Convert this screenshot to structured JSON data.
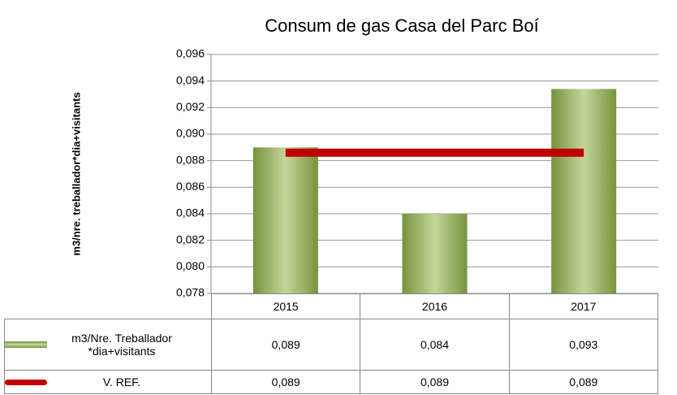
{
  "chart_data": {
    "type": "bar",
    "title": "Consum de gas Casa del Parc  Boí",
    "y_label": "m3/nre. treballador*dia+visitants",
    "categories": [
      "2015",
      "2016",
      "2017"
    ],
    "series": [
      {
        "name": "m3/Nre. Treballador *dia+visitants",
        "type": "bar",
        "color": "#77933c",
        "values": [
          0.089,
          0.084,
          0.0934
        ],
        "value_labels": [
          "0,089",
          "0,084",
          "0,093"
        ]
      },
      {
        "name": "V. REF.",
        "type": "line",
        "color": "#c00000",
        "values": [
          0.0886,
          0.0886,
          0.0886
        ],
        "value_labels": [
          "0,089",
          "0,089",
          "0,089"
        ]
      }
    ],
    "ylim": [
      0.078,
      0.096
    ],
    "yticks": [
      {
        "value": 0.078,
        "label": "0,078"
      },
      {
        "value": 0.08,
        "label": "0,080"
      },
      {
        "value": 0.082,
        "label": "0,082"
      },
      {
        "value": 0.084,
        "label": "0,084"
      },
      {
        "value": 0.086,
        "label": "0,086"
      },
      {
        "value": 0.088,
        "label": "0,088"
      },
      {
        "value": 0.09,
        "label": "0,090"
      },
      {
        "value": 0.092,
        "label": "0,092"
      },
      {
        "value": 0.094,
        "label": "0,094"
      },
      {
        "value": 0.096,
        "label": "0,096"
      }
    ],
    "grid": true,
    "legend": "table"
  }
}
